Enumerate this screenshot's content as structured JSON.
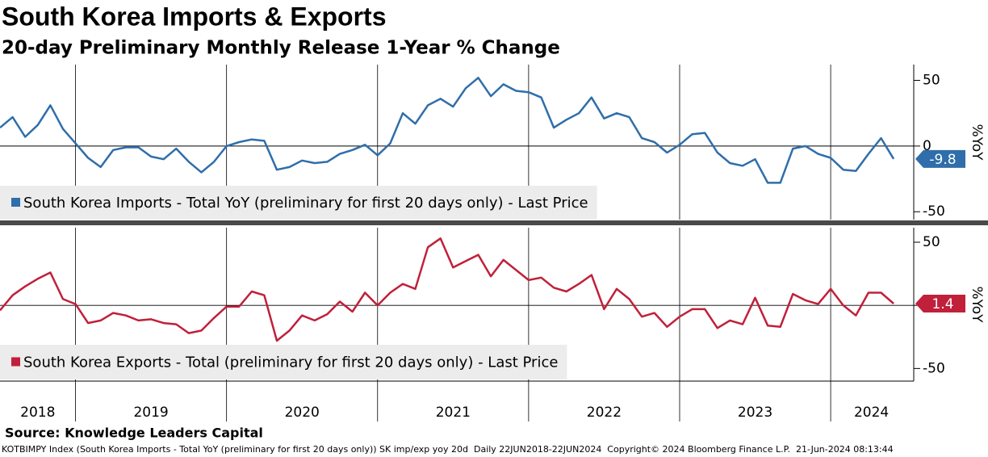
{
  "title": "South Korea Imports & Exports",
  "subtitle": "20-day Preliminary Monthly Release 1-Year % Change",
  "source": "Source: Knowledge Leaders Capital",
  "footer": "KOTBIMPY Index (South Korea Imports - Total YoY (preliminary for first 20 days only)) SK imp/exp yoy 20d  Daily 22JUN2018-22JUN2024  Copyright© 2024 Bloomberg Finance L.P.  21-Jun-2024 08:13:44",
  "chart_data": [
    {
      "type": "line",
      "ylabel": "%YoY",
      "ylim": [
        -56,
        62
      ],
      "yticks": [
        -50,
        0,
        50
      ],
      "hgrid": [
        0
      ],
      "xlim": [
        2018.5,
        2024.55
      ],
      "xgrid": [
        2019,
        2020,
        2021,
        2022,
        2023,
        2024
      ],
      "x": [
        2018.5,
        2018.5833,
        2018.6667,
        2018.75,
        2018.8333,
        2018.9167,
        2019,
        2019.0833,
        2019.1667,
        2019.25,
        2019.3333,
        2019.4167,
        2019.5,
        2019.5833,
        2019.6667,
        2019.75,
        2019.8333,
        2019.9167,
        2020,
        2020.0833,
        2020.1667,
        2020.25,
        2020.3333,
        2020.4167,
        2020.5,
        2020.5833,
        2020.6667,
        2020.75,
        2020.8333,
        2020.9167,
        2021,
        2021.0833,
        2021.1667,
        2021.25,
        2021.3333,
        2021.4167,
        2021.5,
        2021.5833,
        2021.6667,
        2021.75,
        2021.8333,
        2021.9167,
        2022,
        2022.0833,
        2022.1667,
        2022.25,
        2022.3333,
        2022.4167,
        2022.5,
        2022.5833,
        2022.6667,
        2022.75,
        2022.8333,
        2022.9167,
        2023,
        2023.0833,
        2023.1667,
        2023.25,
        2023.3333,
        2023.4167,
        2023.5,
        2023.5833,
        2023.6667,
        2023.75,
        2023.8333,
        2023.9167,
        2024,
        2024.0833,
        2024.1667,
        2024.25,
        2024.3333,
        2024.4167
      ],
      "series": [
        {
          "name": "South Korea Imports - Total YoY (preliminary for first 20 days only) - Last Price",
          "color": "#2f6eaa",
          "values": [
            14,
            22,
            7,
            16,
            31,
            13,
            2,
            -9,
            -16,
            -3,
            -1,
            -1,
            -8,
            -10,
            -2,
            -12,
            -20,
            -12,
            0,
            3,
            5,
            4,
            -18,
            -16,
            -11,
            -13,
            -12,
            -6,
            -3,
            1,
            -7,
            2,
            25,
            17,
            31,
            36,
            30,
            44,
            52,
            38,
            47,
            42,
            41,
            37,
            14,
            20,
            25,
            37,
            21,
            25,
            22,
            6,
            3,
            -5,
            1,
            9,
            10,
            -5,
            -13,
            -15,
            -10,
            -28,
            -28,
            -2,
            0,
            -6,
            -9,
            -18,
            -19,
            -6,
            6,
            -9.8
          ]
        }
      ]
    },
    {
      "type": "line",
      "ylabel": "%YoY",
      "ylim": [
        -60,
        61.5
      ],
      "yticks": [
        -50,
        0,
        50
      ],
      "hgrid": [
        0
      ],
      "xlim": [
        2018.5,
        2024.55
      ],
      "xgrid": [
        2019,
        2020,
        2021,
        2022,
        2023,
        2024
      ],
      "xticks": [
        {
          "value": 2018.75,
          "label": "2018"
        },
        {
          "value": 2019.5,
          "label": "2019"
        },
        {
          "value": 2020.5,
          "label": "2020"
        },
        {
          "value": 2021.5,
          "label": "2021"
        },
        {
          "value": 2022.5,
          "label": "2022"
        },
        {
          "value": 2023.5,
          "label": "2023"
        },
        {
          "value": 2024.27,
          "label": "2024"
        }
      ],
      "x": [
        2018.5,
        2018.5833,
        2018.6667,
        2018.75,
        2018.8333,
        2018.9167,
        2019,
        2019.0833,
        2019.1667,
        2019.25,
        2019.3333,
        2019.4167,
        2019.5,
        2019.5833,
        2019.6667,
        2019.75,
        2019.8333,
        2019.9167,
        2020,
        2020.0833,
        2020.1667,
        2020.25,
        2020.3333,
        2020.4167,
        2020.5,
        2020.5833,
        2020.6667,
        2020.75,
        2020.8333,
        2020.9167,
        2021,
        2021.0833,
        2021.1667,
        2021.25,
        2021.3333,
        2021.4167,
        2021.5,
        2021.5833,
        2021.6667,
        2021.75,
        2021.8333,
        2021.9167,
        2022,
        2022.0833,
        2022.1667,
        2022.25,
        2022.3333,
        2022.4167,
        2022.5,
        2022.5833,
        2022.6667,
        2022.75,
        2022.8333,
        2022.9167,
        2023,
        2023.0833,
        2023.1667,
        2023.25,
        2023.3333,
        2023.4167,
        2023.5,
        2023.5833,
        2023.6667,
        2023.75,
        2023.8333,
        2023.9167,
        2024,
        2024.0833,
        2024.1667,
        2024.25,
        2024.3333,
        2024.4167
      ],
      "series": [
        {
          "name": "South Korea Exports - Total (preliminary for first 20 days only) - Last Price",
          "color": "#c0203a",
          "values": [
            -4,
            8,
            15,
            21,
            26,
            5,
            1,
            -14,
            -12,
            -6,
            -8,
            -12,
            -11,
            -14,
            -15,
            -22,
            -20,
            -10,
            -1,
            -1,
            11,
            8,
            -28,
            -20,
            -8,
            -12,
            -7,
            3,
            -5,
            10,
            0,
            10,
            17,
            13,
            46,
            53,
            30,
            35,
            40,
            23,
            36,
            28,
            20,
            22,
            14,
            11,
            17,
            24,
            -3,
            13,
            5,
            -9,
            -6,
            -17,
            -9,
            -3,
            -3,
            -18,
            -12,
            -15,
            6,
            -16,
            -17,
            9,
            4,
            1,
            13,
            0,
            -8,
            10,
            10,
            1.4
          ]
        }
      ]
    }
  ]
}
